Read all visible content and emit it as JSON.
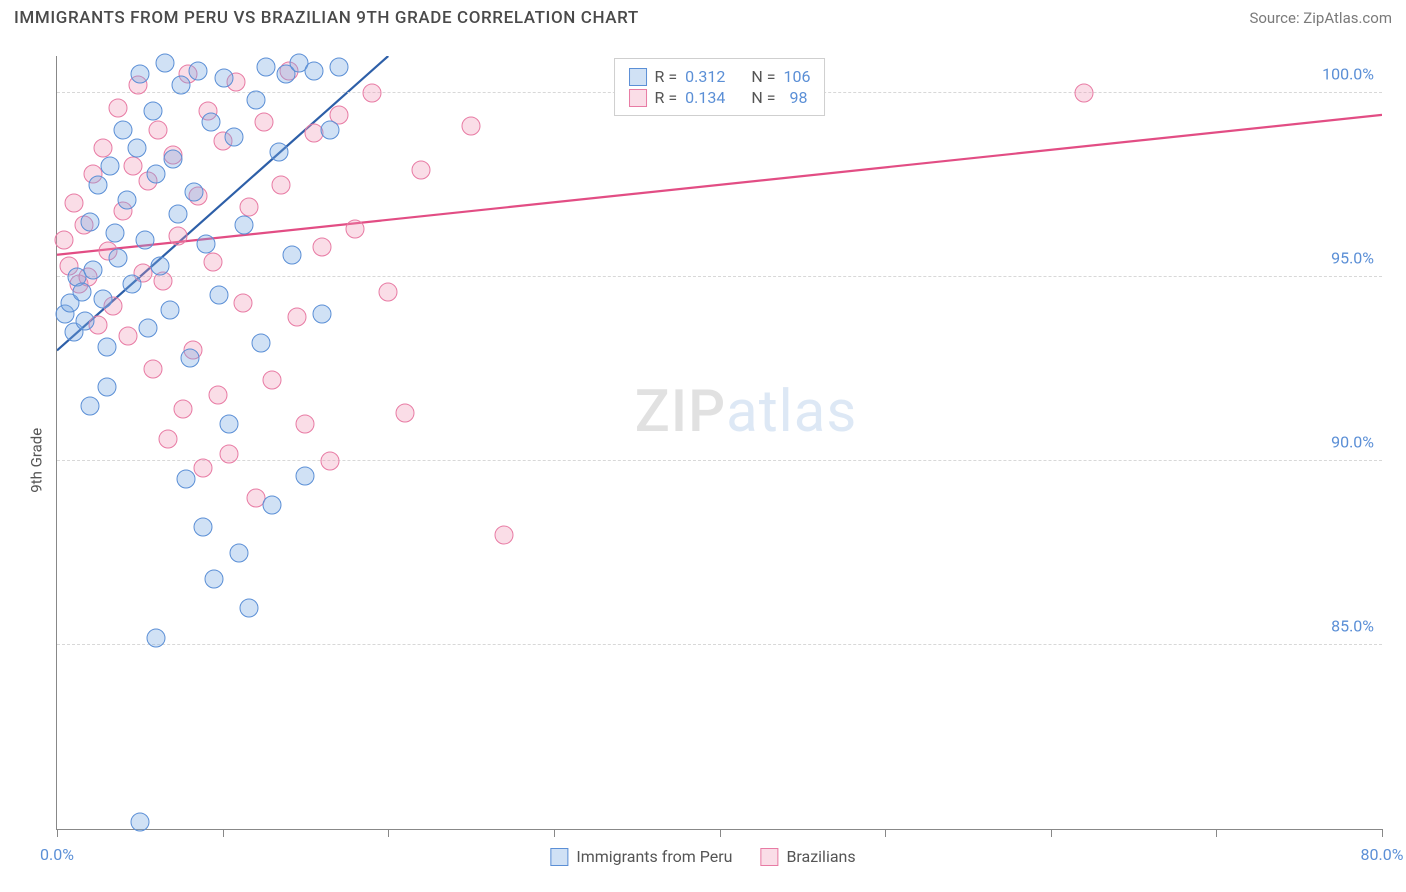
{
  "header": {
    "title": "IMMIGRANTS FROM PERU VS BRAZILIAN 9TH GRADE CORRELATION CHART",
    "source": "Source: ZipAtlas.com"
  },
  "chart": {
    "type": "scatter",
    "y_axis_label": "9th Grade",
    "background_color": "#ffffff",
    "grid_color": "#d8d8d8",
    "axis_color": "#888888",
    "label_color": "#5b8fd6",
    "title_fontsize": 17,
    "label_fontsize": 16,
    "marker_radius": 9.5,
    "marker_opacity": 0.35,
    "xlim": [
      0,
      80
    ],
    "ylim": [
      80,
      101
    ],
    "xticks": [
      0,
      10,
      20,
      30,
      40,
      50,
      60,
      70,
      80
    ],
    "xtick_labels": {
      "0": "0.0%",
      "80": "80.0%"
    },
    "yticks": [
      85,
      90,
      95,
      100
    ],
    "ytick_labels": {
      "85": "85.0%",
      "90": "90.0%",
      "95": "95.0%",
      "100": "100.0%"
    },
    "watermark": {
      "part1": "ZIP",
      "part2": "atlas"
    },
    "legend_top": {
      "series1": {
        "r_label": "R =",
        "r_value": "0.312",
        "n_label": "N =",
        "n_value": "106"
      },
      "series2": {
        "r_label": "R =",
        "r_value": "0.134",
        "n_label": "N =",
        "n_value": "98"
      }
    },
    "legend_bottom": {
      "series1_label": "Immigrants from Peru",
      "series2_label": "Brazilians"
    },
    "series": {
      "blue": {
        "color_fill": "rgba(120,170,225,0.35)",
        "color_stroke": "#5b8fd6",
        "trend_color": "#2d5fa8",
        "trend_width": 2.2,
        "trend": {
          "x1": 0,
          "y1": 93.0,
          "x2": 20,
          "y2": 101.0
        },
        "points": [
          [
            0.5,
            94.0
          ],
          [
            0.8,
            94.3
          ],
          [
            1.0,
            93.5
          ],
          [
            1.2,
            95.0
          ],
          [
            1.5,
            94.6
          ],
          [
            1.7,
            93.8
          ],
          [
            2.0,
            96.5
          ],
          [
            2.2,
            95.2
          ],
          [
            2.5,
            97.5
          ],
          [
            2.8,
            94.4
          ],
          [
            3.0,
            93.1
          ],
          [
            3.2,
            98.0
          ],
          [
            3.5,
            96.2
          ],
          [
            3.7,
            95.5
          ],
          [
            4.0,
            99.0
          ],
          [
            4.2,
            97.1
          ],
          [
            4.5,
            94.8
          ],
          [
            4.8,
            98.5
          ],
          [
            5.0,
            100.5
          ],
          [
            5.3,
            96.0
          ],
          [
            5.5,
            93.6
          ],
          [
            5.8,
            99.5
          ],
          [
            6.0,
            97.8
          ],
          [
            6.2,
            95.3
          ],
          [
            6.5,
            100.8
          ],
          [
            6.8,
            94.1
          ],
          [
            7.0,
            98.2
          ],
          [
            7.3,
            96.7
          ],
          [
            7.5,
            100.2
          ],
          [
            7.8,
            89.5
          ],
          [
            8.0,
            92.8
          ],
          [
            8.3,
            97.3
          ],
          [
            8.5,
            100.6
          ],
          [
            8.8,
            88.2
          ],
          [
            9.0,
            95.9
          ],
          [
            9.3,
            99.2
          ],
          [
            9.5,
            86.8
          ],
          [
            9.8,
            94.5
          ],
          [
            10.1,
            100.4
          ],
          [
            10.4,
            91.0
          ],
          [
            10.7,
            98.8
          ],
          [
            11.0,
            87.5
          ],
          [
            11.3,
            96.4
          ],
          [
            11.6,
            86.0
          ],
          [
            12.0,
            99.8
          ],
          [
            12.3,
            93.2
          ],
          [
            12.6,
            100.7
          ],
          [
            13.0,
            88.8
          ],
          [
            13.4,
            98.4
          ],
          [
            13.8,
            100.5
          ],
          [
            14.2,
            95.6
          ],
          [
            14.6,
            100.8
          ],
          [
            15.0,
            89.6
          ],
          [
            15.5,
            100.6
          ],
          [
            16.0,
            94.0
          ],
          [
            16.5,
            99.0
          ],
          [
            17.0,
            100.7
          ],
          [
            6.0,
            85.2
          ],
          [
            5.0,
            80.2
          ],
          [
            3.0,
            92.0
          ],
          [
            2.0,
            91.5
          ]
        ]
      },
      "pink": {
        "color_fill": "rgba(240,150,180,0.32)",
        "color_stroke": "#e87ba4",
        "trend_color": "#e24d84",
        "trend_width": 2.2,
        "trend": {
          "x1": 0,
          "y1": 95.6,
          "x2": 80,
          "y2": 99.4
        },
        "points": [
          [
            0.4,
            96.0
          ],
          [
            0.7,
            95.3
          ],
          [
            1.0,
            97.0
          ],
          [
            1.3,
            94.8
          ],
          [
            1.6,
            96.4
          ],
          [
            1.9,
            95.0
          ],
          [
            2.2,
            97.8
          ],
          [
            2.5,
            93.7
          ],
          [
            2.8,
            98.5
          ],
          [
            3.1,
            95.7
          ],
          [
            3.4,
            94.2
          ],
          [
            3.7,
            99.6
          ],
          [
            4.0,
            96.8
          ],
          [
            4.3,
            93.4
          ],
          [
            4.6,
            98.0
          ],
          [
            4.9,
            100.2
          ],
          [
            5.2,
            95.1
          ],
          [
            5.5,
            97.6
          ],
          [
            5.8,
            92.5
          ],
          [
            6.1,
            99.0
          ],
          [
            6.4,
            94.9
          ],
          [
            6.7,
            90.6
          ],
          [
            7.0,
            98.3
          ],
          [
            7.3,
            96.1
          ],
          [
            7.6,
            91.4
          ],
          [
            7.9,
            100.5
          ],
          [
            8.2,
            93.0
          ],
          [
            8.5,
            97.2
          ],
          [
            8.8,
            89.8
          ],
          [
            9.1,
            99.5
          ],
          [
            9.4,
            95.4
          ],
          [
            9.7,
            91.8
          ],
          [
            10.0,
            98.7
          ],
          [
            10.4,
            90.2
          ],
          [
            10.8,
            100.3
          ],
          [
            11.2,
            94.3
          ],
          [
            11.6,
            96.9
          ],
          [
            12.0,
            89.0
          ],
          [
            12.5,
            99.2
          ],
          [
            13.0,
            92.2
          ],
          [
            13.5,
            97.5
          ],
          [
            14.0,
            100.6
          ],
          [
            14.5,
            93.9
          ],
          [
            15.0,
            91.0
          ],
          [
            15.5,
            98.9
          ],
          [
            16.0,
            95.8
          ],
          [
            16.5,
            90.0
          ],
          [
            17.0,
            99.4
          ],
          [
            18.0,
            96.3
          ],
          [
            19.0,
            100.0
          ],
          [
            20.0,
            94.6
          ],
          [
            21.0,
            91.3
          ],
          [
            22.0,
            97.9
          ],
          [
            25.0,
            99.1
          ],
          [
            27.0,
            88.0
          ],
          [
            62.0,
            100.0
          ]
        ]
      }
    }
  }
}
